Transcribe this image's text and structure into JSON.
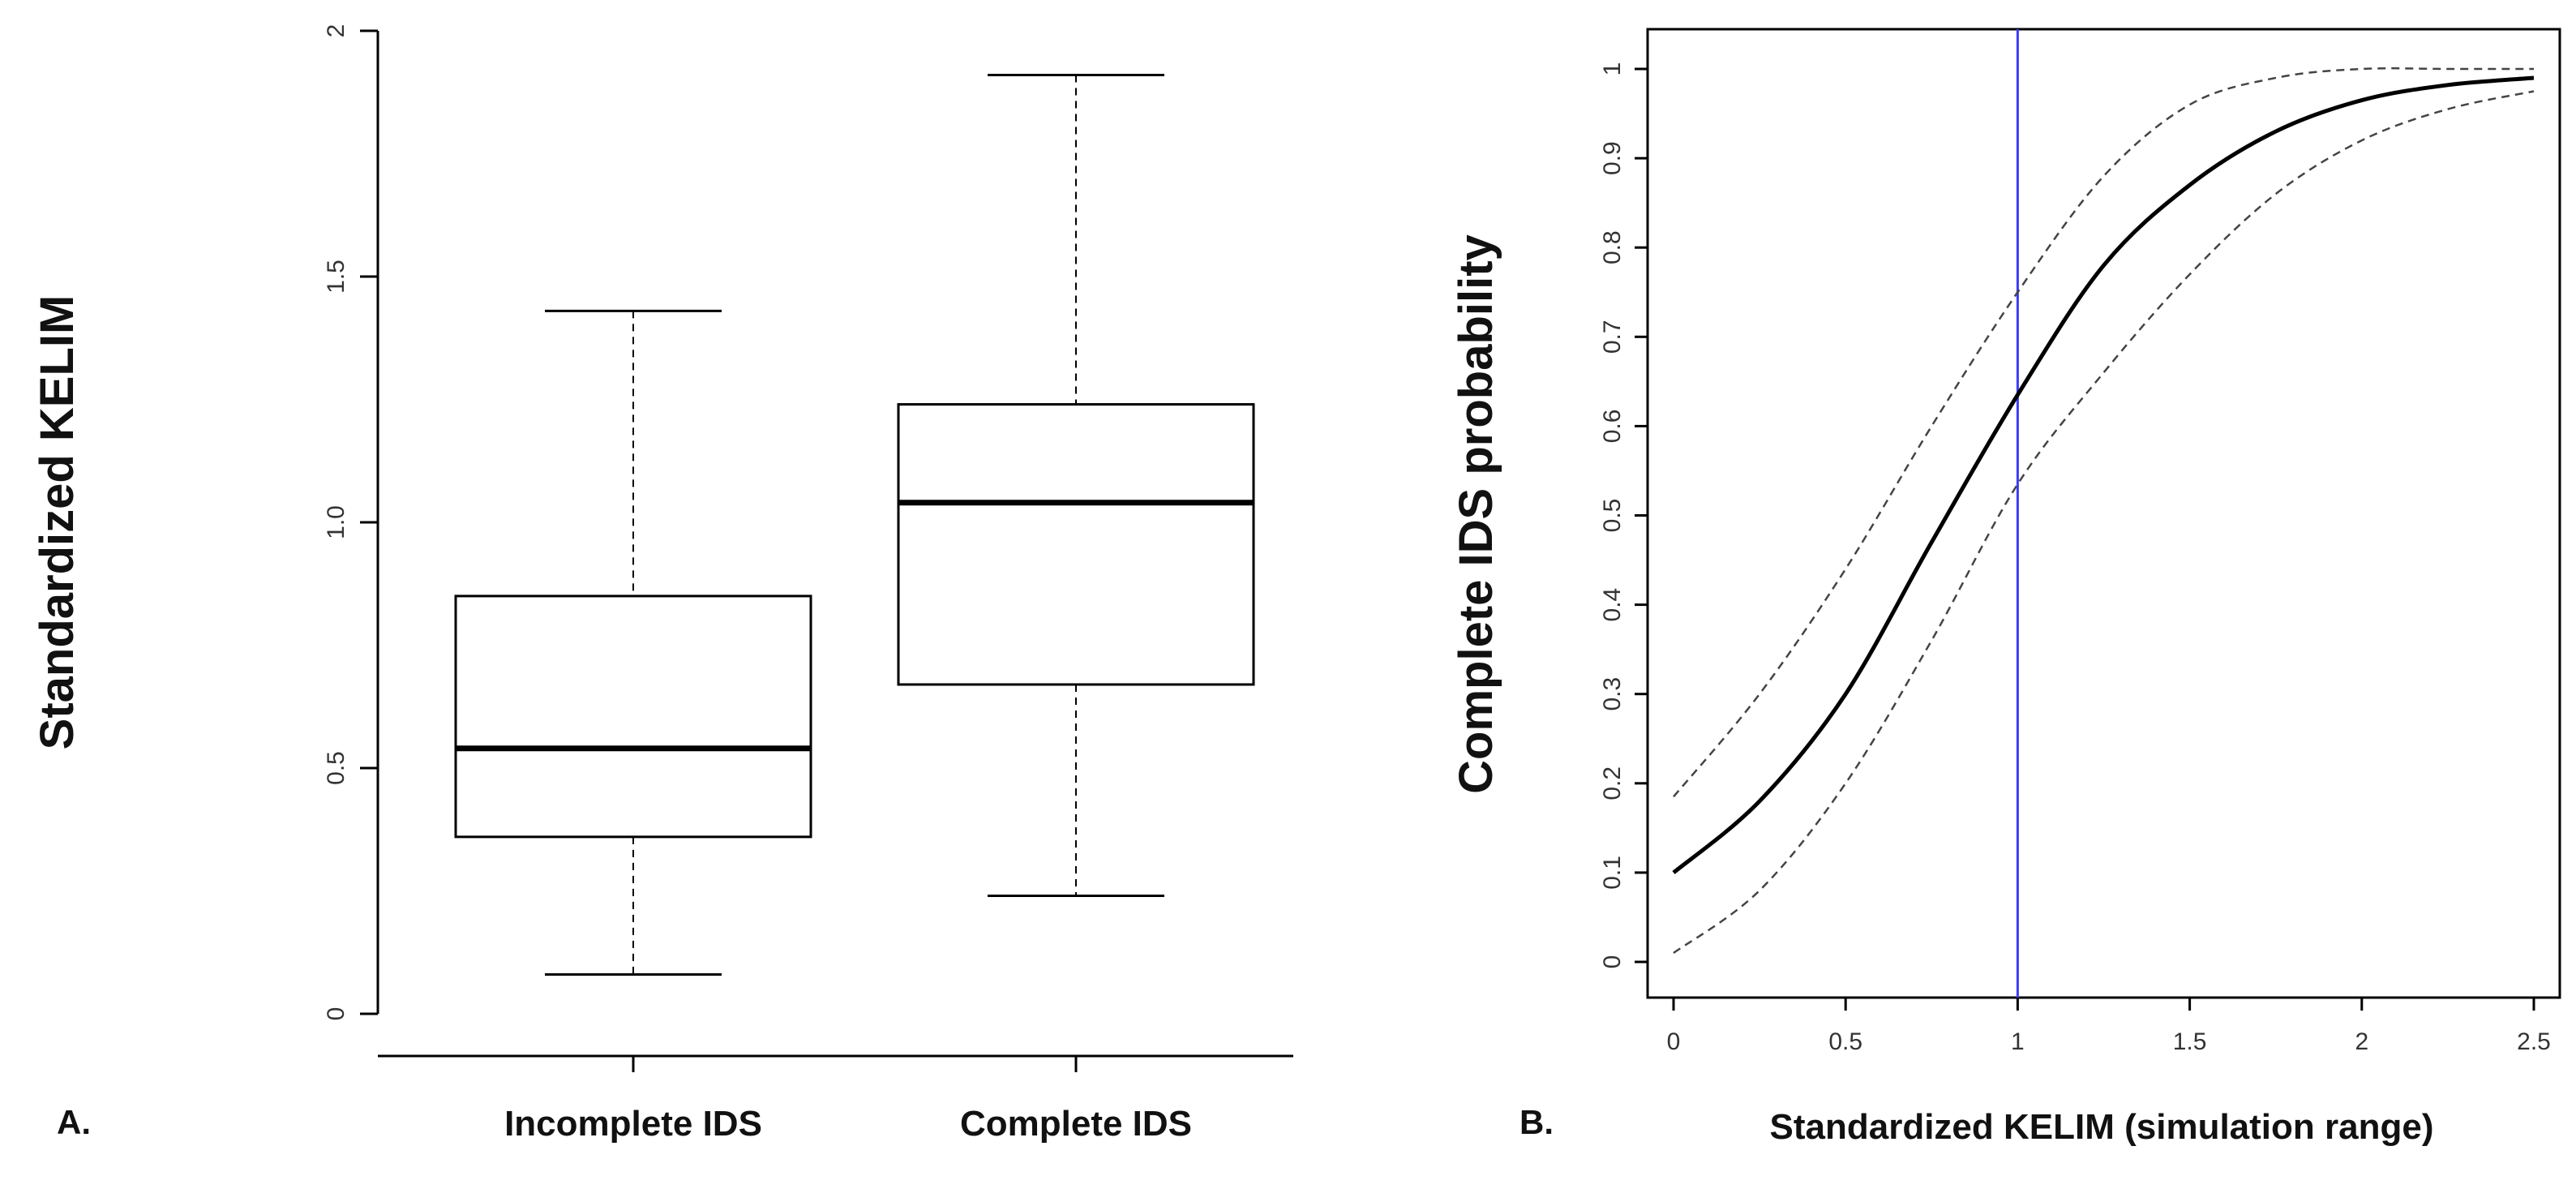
{
  "chart_data": [
    {
      "type": "box",
      "panel_label": "A.",
      "ylabel": "Standardized KELIM",
      "xlabel": "",
      "ylim": [
        0,
        2
      ],
      "yticks": [
        "0",
        "0.5",
        "1.0",
        "1.5",
        "2"
      ],
      "ytick_values": [
        0,
        0.5,
        1.0,
        1.5,
        2
      ],
      "categories": [
        "Incomplete IDS",
        "Complete IDS"
      ],
      "boxes": [
        {
          "whisker_low": 0.08,
          "q1": 0.36,
          "median": 0.54,
          "q3": 0.85,
          "whisker_high": 1.43
        },
        {
          "whisker_low": 0.24,
          "q1": 0.67,
          "median": 1.04,
          "q3": 1.24,
          "whisker_high": 1.91
        }
      ]
    },
    {
      "type": "line",
      "panel_label": "B.",
      "xlabel": "Standardized KELIM (simulation range)",
      "ylabel": "Complete IDS probability",
      "xlim": [
        0,
        2.5
      ],
      "ylim": [
        0,
        1
      ],
      "xticks": [
        "0",
        "0.5",
        "1",
        "1.5",
        "2",
        "2.5"
      ],
      "xtick_values": [
        0,
        0.5,
        1,
        1.5,
        2,
        2.5
      ],
      "yticks": [
        "0",
        "0.1",
        "0.2",
        "0.3",
        "0.4",
        "0.5",
        "0.6",
        "0.7",
        "0.8",
        "0.9",
        "1"
      ],
      "ytick_values": [
        0,
        0.1,
        0.2,
        0.3,
        0.4,
        0.5,
        0.6,
        0.7,
        0.8,
        0.9,
        1
      ],
      "vline_x": 1,
      "vline_color": "#3b3bff",
      "x": [
        0,
        0.25,
        0.5,
        0.75,
        1.0,
        1.25,
        1.5,
        1.75,
        2.0,
        2.25,
        2.5
      ],
      "series": [
        {
          "style": "solid",
          "values": [
            0.1,
            0.18,
            0.3,
            0.47,
            0.635,
            0.78,
            0.87,
            0.93,
            0.965,
            0.982,
            0.99
          ]
        },
        {
          "style": "dashed",
          "values": [
            0.185,
            0.3,
            0.44,
            0.6,
            0.75,
            0.88,
            0.96,
            0.99,
            1.0,
            1.0,
            1.0
          ]
        },
        {
          "style": "dashed",
          "values": [
            0.01,
            0.08,
            0.2,
            0.36,
            0.535,
            0.66,
            0.77,
            0.86,
            0.92,
            0.955,
            0.975
          ]
        }
      ]
    }
  ]
}
